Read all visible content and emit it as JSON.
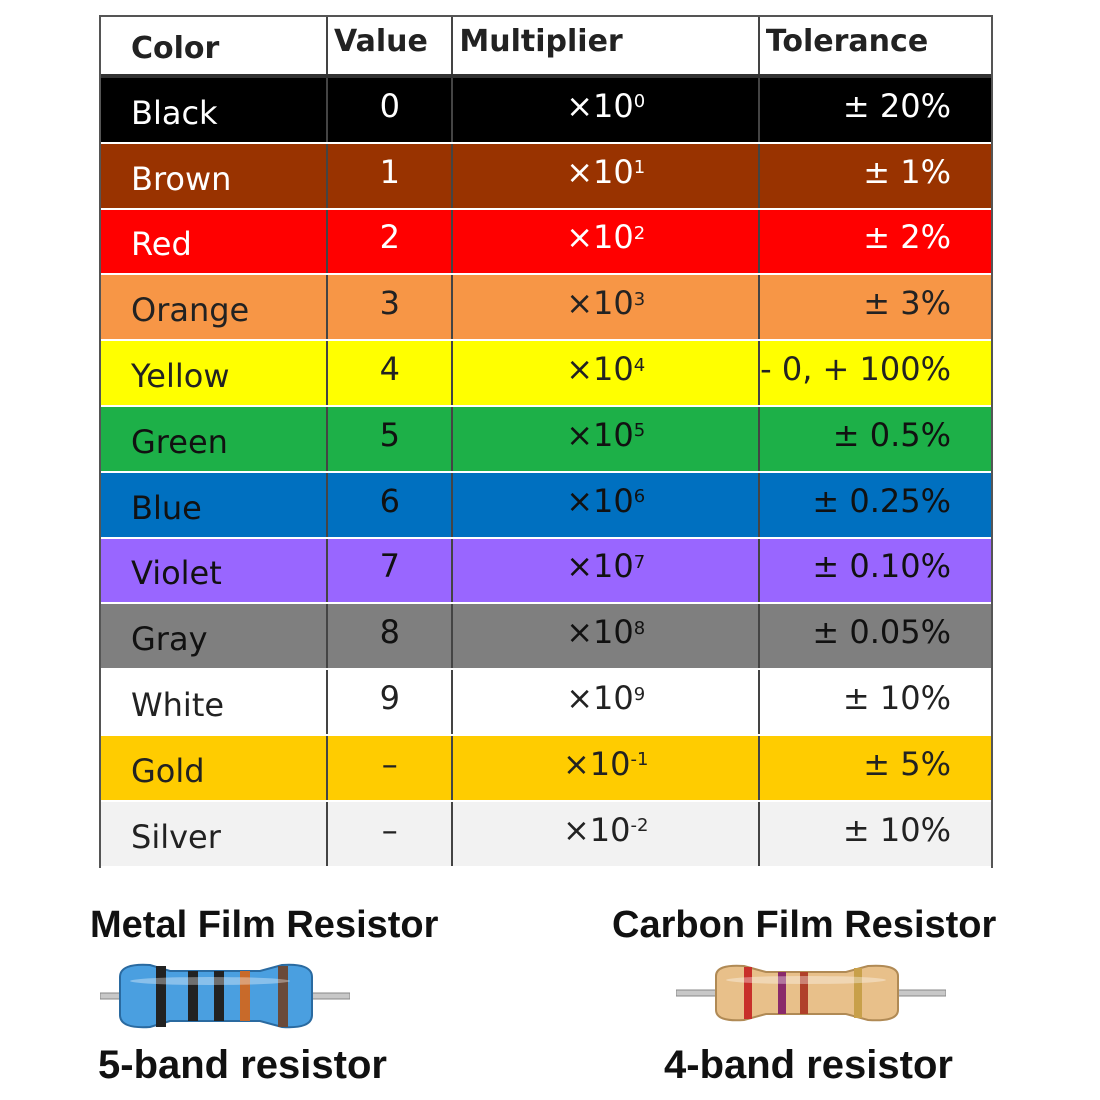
{
  "table": {
    "headers": {
      "color": "Color",
      "value": "Value",
      "multiplier": "Multiplier",
      "tolerance": "Tolerance"
    },
    "rows": [
      {
        "color": "Black",
        "value": "0",
        "mult_base": "×10",
        "mult_exp": "0",
        "tolerance": "± 20%",
        "bg": "#000000",
        "fg": "#ffffff"
      },
      {
        "color": "Brown",
        "value": "1",
        "mult_base": "×10",
        "mult_exp": "1",
        "tolerance": "± 1%",
        "bg": "#993300",
        "fg": "#ffffff"
      },
      {
        "color": "Red",
        "value": "2",
        "mult_base": "×10",
        "mult_exp": "2",
        "tolerance": "± 2%",
        "bg": "#ff0000",
        "fg": "#ffffff"
      },
      {
        "color": "Orange",
        "value": "3",
        "mult_base": "×10",
        "mult_exp": "3",
        "tolerance": "± 3%",
        "bg": "#f79646",
        "fg": "#222222"
      },
      {
        "color": "Yellow",
        "value": "4",
        "mult_base": "×10",
        "mult_exp": "4",
        "tolerance": "- 0, + 100%",
        "bg": "#ffff00",
        "fg": "#222222"
      },
      {
        "color": "Green",
        "value": "5",
        "mult_base": "×10",
        "mult_exp": "5",
        "tolerance": "± 0.5%",
        "bg": "#1db048",
        "fg": "#111111"
      },
      {
        "color": "Blue",
        "value": "6",
        "mult_base": "×10",
        "mult_exp": "6",
        "tolerance": "± 0.25%",
        "bg": "#0070c0",
        "fg": "#111111"
      },
      {
        "color": "Violet",
        "value": "7",
        "mult_base": "×10",
        "mult_exp": "7",
        "tolerance": "± 0.10%",
        "bg": "#9966ff",
        "fg": "#111111"
      },
      {
        "color": "Gray",
        "value": "8",
        "mult_base": "×10",
        "mult_exp": "8",
        "tolerance": "± 0.05%",
        "bg": "#7f7f7f",
        "fg": "#111111"
      },
      {
        "color": "White",
        "value": "9",
        "mult_base": "×10",
        "mult_exp": "9",
        "tolerance": "± 10%",
        "bg": "#ffffff",
        "fg": "#222222"
      },
      {
        "color": "Gold",
        "value": "–",
        "mult_base": "×10",
        "mult_exp": "-1",
        "tolerance": "± 5%",
        "bg": "#ffcc00",
        "fg": "#222222"
      },
      {
        "color": "Silver",
        "value": "–",
        "mult_base": "×10",
        "mult_exp": "-2",
        "tolerance": "± 10%",
        "bg": "#f2f2f2",
        "fg": "#222222"
      }
    ]
  },
  "metal": {
    "title": "Metal Film Resistor",
    "caption": "5-band resistor"
  },
  "carbon": {
    "title": "Carbon Film Resistor",
    "caption": "4-band resistor"
  }
}
